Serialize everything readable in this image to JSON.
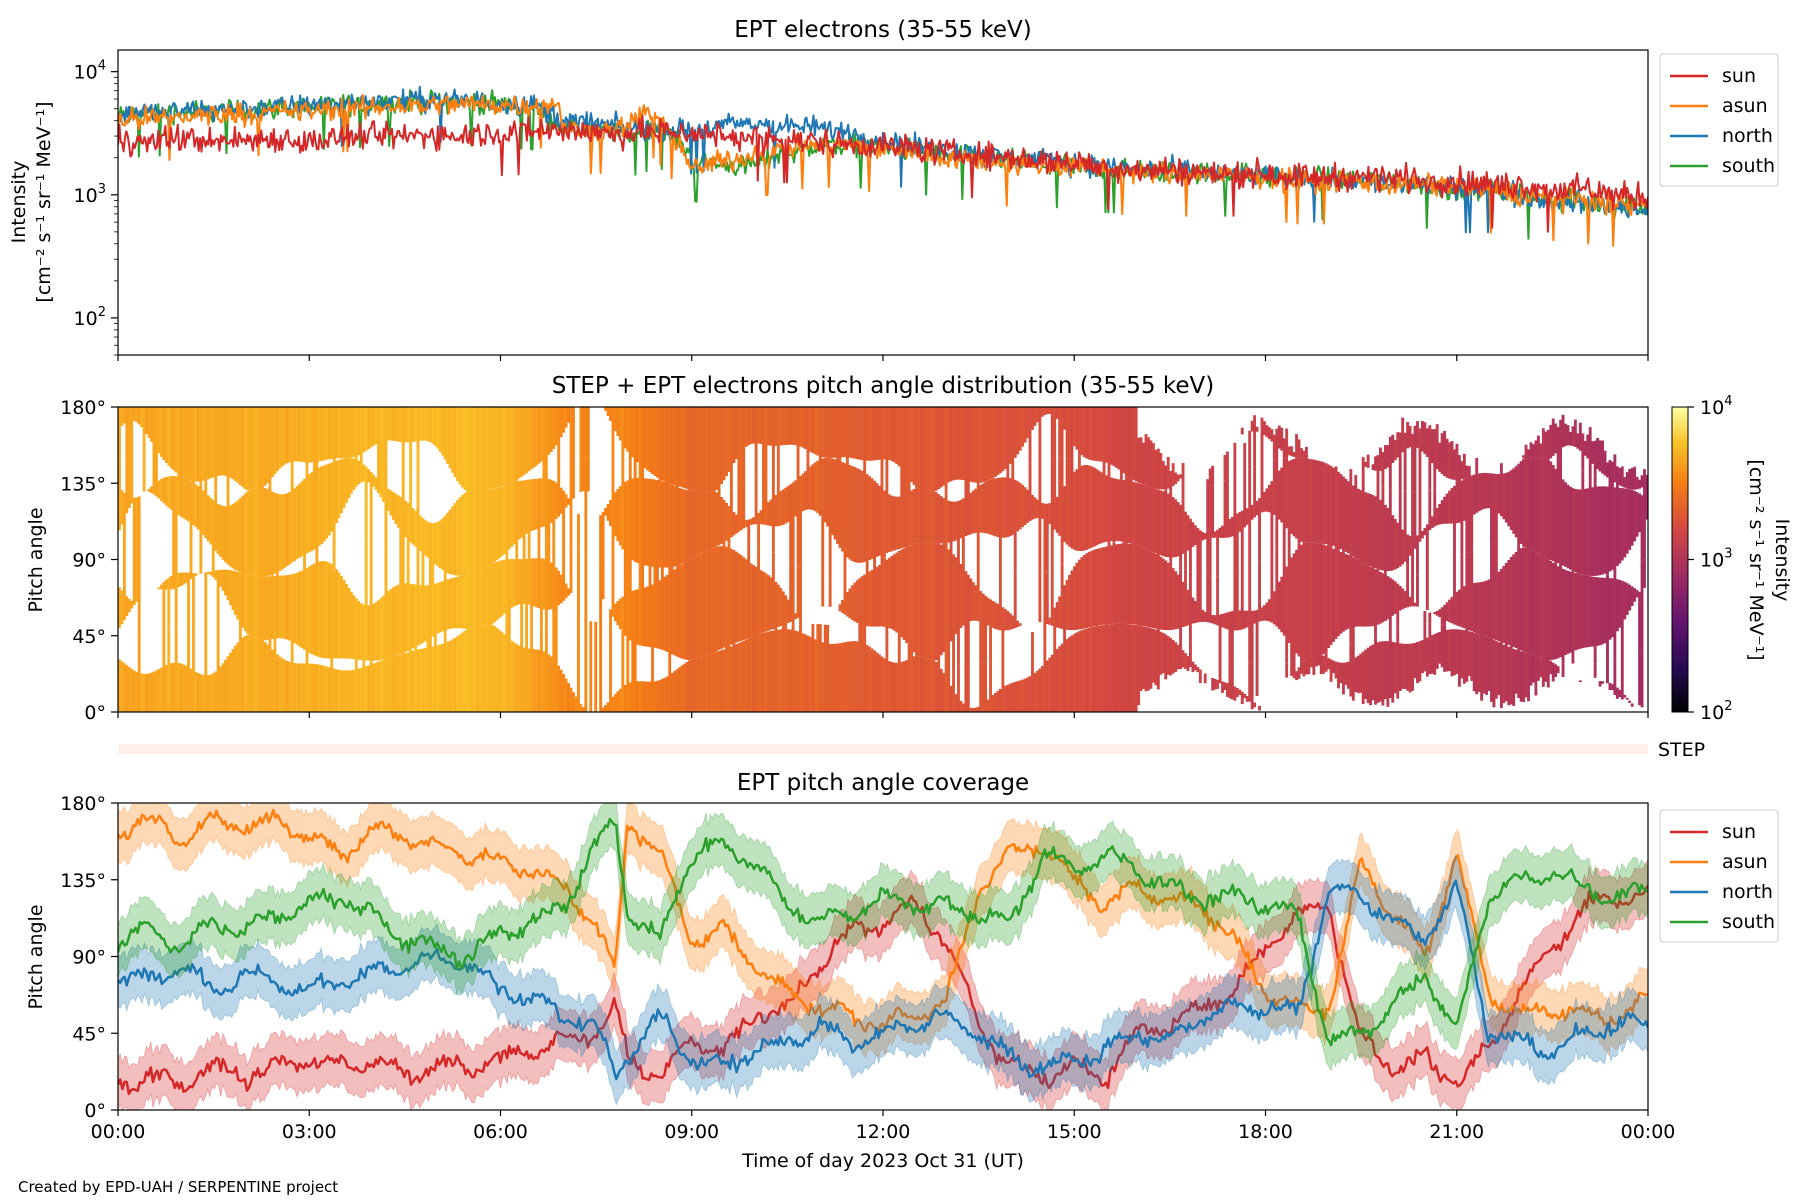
{
  "footer": "Created by EPD-UAH / SERPENTINE project",
  "colors": {
    "sun": "#d62728",
    "asun": "#ff7f0e",
    "north": "#1f77b4",
    "south": "#2ca02c",
    "step_strip": "#fdefe9"
  },
  "chart_data": [
    {
      "id": "panel1",
      "type": "line",
      "title": "EPT electrons (35-55 keV)",
      "ylabel": "Intensity",
      "ylabel_units": "[cm⁻² s⁻¹ sr⁻¹ MeV⁻¹]",
      "yscale": "log",
      "ylim": [
        50,
        15000
      ],
      "yticks": [
        {
          "value": 100,
          "base": "10",
          "exp": "2"
        },
        {
          "value": 1000,
          "base": "10",
          "exp": "3"
        },
        {
          "value": 10000,
          "base": "10",
          "exp": "4"
        }
      ],
      "xlim": [
        0,
        24
      ],
      "legend": {
        "placement": "outside-right-top",
        "entries": [
          "sun",
          "asun",
          "north",
          "south"
        ]
      },
      "series": [
        {
          "name": "sun",
          "x": [
            0,
            0.5,
            1,
            1.5,
            2,
            2.5,
            3,
            3.5,
            4,
            4.5,
            5,
            5.5,
            6,
            6.5,
            7,
            7.5,
            8,
            8.5,
            9,
            9.5,
            10,
            10.5,
            11,
            11.5,
            12,
            12.5,
            13,
            13.5,
            14,
            14.5,
            15,
            15.5,
            16,
            16.5,
            17,
            17.5,
            18,
            18.5,
            19,
            19.5,
            20,
            20.5,
            21,
            21.5,
            22,
            22.5,
            23,
            23.5,
            24
          ],
          "values": [
            2800,
            2700,
            2900,
            2700,
            2800,
            2900,
            2700,
            2900,
            3000,
            3000,
            3100,
            3100,
            3200,
            3300,
            3400,
            3200,
            3100,
            3300,
            3200,
            3000,
            2900,
            2800,
            2700,
            2600,
            2500,
            2400,
            2200,
            2100,
            2000,
            1900,
            1800,
            1700,
            1600,
            1600,
            1500,
            1500,
            1500,
            1400,
            1400,
            1400,
            1400,
            1300,
            1300,
            1200,
            1200,
            1100,
            1100,
            1000,
            950
          ]
        },
        {
          "name": "asun",
          "x": [
            0,
            0.5,
            1,
            1.5,
            2,
            2.5,
            3,
            3.5,
            4,
            4.5,
            5,
            5.5,
            6,
            6.5,
            6.9,
            7,
            7.5,
            8,
            8.3,
            8.6,
            9,
            9.5,
            10,
            10.5,
            11,
            11.5,
            12,
            12.5,
            13,
            13.5,
            14,
            14.5,
            15,
            15.5,
            16,
            16.5,
            17,
            17.5,
            18,
            18.5,
            19,
            19.5,
            20,
            20.5,
            21,
            21.5,
            22,
            22.5,
            23,
            23.5,
            24
          ],
          "values": [
            4000,
            4200,
            4300,
            4500,
            4600,
            4700,
            4800,
            5000,
            5100,
            5300,
            5400,
            5500,
            5400,
            5400,
            5300,
            3400,
            3300,
            3600,
            5000,
            3400,
            1600,
            1900,
            2100,
            2400,
            2600,
            2500,
            2300,
            2200,
            2000,
            1900,
            1800,
            1700,
            1700,
            1600,
            1500,
            1500,
            1500,
            1400,
            1400,
            1300,
            1300,
            1300,
            1200,
            1200,
            1200,
            1100,
            1000,
            950,
            900,
            850,
            800
          ]
        },
        {
          "name": "north",
          "x": [
            0,
            0.5,
            1,
            1.5,
            2,
            2.5,
            3,
            3.5,
            4,
            4.5,
            5,
            5.5,
            6,
            6.5,
            7,
            7.5,
            8,
            8.5,
            9,
            9.5,
            10,
            10.5,
            11,
            11.5,
            12,
            12.5,
            13,
            13.5,
            14,
            14.5,
            15,
            15.5,
            16,
            16.5,
            17,
            17.5,
            18,
            18.5,
            19,
            19.5,
            20,
            20.5,
            21,
            21.5,
            22,
            22.5,
            23,
            23.5,
            24
          ],
          "values": [
            4500,
            4700,
            4800,
            4900,
            5000,
            5200,
            5300,
            5500,
            5700,
            5900,
            6000,
            5800,
            5600,
            5400,
            4000,
            3800,
            3500,
            3400,
            3300,
            3700,
            3800,
            3600,
            3500,
            3200,
            2700,
            2500,
            2300,
            2100,
            2000,
            1900,
            1800,
            1700,
            1600,
            1600,
            1500,
            1500,
            1400,
            1400,
            1300,
            1300,
            1200,
            1200,
            1100,
            1100,
            1000,
            900,
            850,
            800,
            750
          ]
        },
        {
          "name": "south",
          "x": [
            0,
            0.5,
            1,
            1.5,
            2,
            2.5,
            3,
            3.5,
            4,
            4.5,
            5,
            5.5,
            6,
            6.5,
            7,
            7.5,
            8,
            8.5,
            9,
            9.5,
            10,
            10.5,
            11,
            11.5,
            12,
            12.5,
            13,
            13.5,
            14,
            14.5,
            15,
            15.5,
            16,
            16.5,
            17,
            17.5,
            18,
            18.5,
            19,
            19.5,
            20,
            20.5,
            21,
            21.5,
            22,
            22.5,
            23,
            23.5,
            24
          ],
          "values": [
            4400,
            4600,
            4700,
            4800,
            4900,
            5100,
            5200,
            5300,
            5500,
            5600,
            5800,
            5600,
            5400,
            5200,
            3400,
            3300,
            3100,
            3700,
            2000,
            1700,
            1800,
            2200,
            2500,
            2600,
            2400,
            2300,
            2100,
            2000,
            1900,
            1800,
            1700,
            1600,
            1600,
            1500,
            1500,
            1500,
            1400,
            1400,
            1400,
            1300,
            1300,
            1200,
            1100,
            1100,
            1000,
            900,
            850,
            800,
            800
          ]
        }
      ]
    },
    {
      "id": "panel2",
      "type": "heatmap",
      "title": "STEP + EPT electrons pitch angle distribution (35-55 keV)",
      "ylabel": "Pitch angle",
      "ylim": [
        0,
        180
      ],
      "yticks": [
        "0°",
        "45°",
        "90°",
        "135°",
        "180°"
      ],
      "xlim": [
        0,
        24
      ],
      "colorbar": {
        "label": "Intensity",
        "units": "[cm⁻² s⁻¹ sr⁻¹ MeV⁻¹]",
        "scale": "log",
        "range": [
          100,
          10000
        ],
        "colormap": "inferno",
        "ticks": [
          {
            "value": 100,
            "base": "10",
            "exp": "2"
          },
          {
            "value": 1000,
            "base": "10",
            "exp": "3"
          },
          {
            "value": 10000,
            "base": "10",
            "exp": "4"
          }
        ]
      },
      "intensity_profile": {
        "x": [
          0,
          1,
          2,
          3,
          4,
          5,
          6,
          7,
          8,
          9,
          10,
          11,
          12,
          13,
          14,
          15,
          16,
          17,
          18,
          19,
          20,
          21,
          22,
          23,
          24
        ],
        "values": [
          4500,
          4600,
          4700,
          4900,
          5200,
          5400,
          5300,
          3400,
          3300,
          2400,
          2300,
          2200,
          2000,
          1900,
          1800,
          1700,
          1500,
          1400,
          1350,
          1300,
          1200,
          1150,
          1050,
          950,
          850
        ]
      }
    },
    {
      "id": "step-strip",
      "type": "heatmap",
      "label": "STEP"
    },
    {
      "id": "panel3",
      "type": "line",
      "title": "EPT pitch angle coverage",
      "ylabel": "Pitch angle",
      "ylim": [
        0,
        180
      ],
      "yticks": [
        "0°",
        "45°",
        "90°",
        "135°",
        "180°"
      ],
      "xlim": [
        0,
        24
      ],
      "xticks": [
        "00:00",
        "03:00",
        "06:00",
        "09:00",
        "12:00",
        "15:00",
        "18:00",
        "21:00",
        "00:00"
      ],
      "xlabel": "Time of day 2023 Oct 31 (UT)",
      "legend": {
        "placement": "outside-right-top",
        "entries": [
          "sun",
          "asun",
          "north",
          "south"
        ]
      },
      "series": [
        {
          "name": "sun",
          "x": [
            0,
            0.5,
            1,
            1.5,
            2,
            2.5,
            3,
            3.5,
            4,
            4.5,
            5,
            5.5,
            6,
            6.5,
            7,
            7.5,
            7.8,
            8,
            8.5,
            9,
            9.5,
            10,
            10.5,
            11,
            11.5,
            12,
            12.5,
            13,
            13.5,
            14,
            14.5,
            15,
            15.5,
            16,
            16.5,
            17,
            17.5,
            18,
            18.5,
            19,
            19.5,
            20,
            20.5,
            21,
            21.5,
            22,
            22.5,
            23,
            23.5,
            24
          ],
          "values": [
            15,
            20,
            15,
            25,
            20,
            25,
            30,
            25,
            30,
            20,
            25,
            25,
            30,
            35,
            40,
            45,
            60,
            30,
            20,
            40,
            35,
            55,
            60,
            85,
            105,
            110,
            120,
            100,
            50,
            25,
            20,
            25,
            20,
            45,
            50,
            60,
            70,
            95,
            115,
            120,
            40,
            25,
            30,
            15,
            35,
            70,
            95,
            120,
            125,
            125
          ]
        },
        {
          "name": "asun",
          "x": [
            0,
            0.5,
            1,
            1.5,
            2,
            2.5,
            3,
            3.5,
            4,
            4.5,
            5,
            5.5,
            6,
            6.5,
            7,
            7.5,
            7.8,
            8,
            8.5,
            9,
            9.5,
            10,
            10.5,
            11,
            11.5,
            12,
            12.5,
            13,
            13.5,
            14,
            14.5,
            15,
            15.5,
            16,
            16.5,
            17,
            17.5,
            18,
            18.5,
            19,
            19.5,
            20,
            20.5,
            21,
            21.5,
            22,
            22.5,
            23,
            23.5,
            24
          ],
          "values": [
            165,
            170,
            160,
            170,
            165,
            170,
            160,
            150,
            165,
            160,
            155,
            150,
            145,
            140,
            130,
            110,
            80,
            170,
            150,
            100,
            105,
            85,
            70,
            60,
            55,
            50,
            55,
            65,
            130,
            150,
            155,
            135,
            120,
            130,
            125,
            120,
            100,
            70,
            60,
            60,
            145,
            115,
            90,
            150,
            70,
            55,
            60,
            55,
            55,
            65
          ]
        },
        {
          "name": "north",
          "x": [
            0,
            0.5,
            1,
            1.5,
            2,
            2.5,
            3,
            3.5,
            4,
            4.5,
            5,
            5.5,
            6,
            6.5,
            7,
            7.5,
            7.8,
            8,
            8.5,
            9,
            9.5,
            10,
            10.5,
            11,
            11.5,
            12,
            12.5,
            13,
            13.5,
            14,
            14.5,
            15,
            15.5,
            16,
            16.5,
            17,
            17.5,
            18,
            18.5,
            19,
            19.5,
            20,
            20.5,
            21,
            21.5,
            22,
            22.5,
            23,
            23.5,
            24
          ],
          "values": [
            80,
            75,
            85,
            70,
            80,
            75,
            70,
            75,
            80,
            85,
            90,
            85,
            70,
            65,
            55,
            50,
            20,
            35,
            55,
            30,
            25,
            35,
            40,
            50,
            40,
            45,
            50,
            55,
            45,
            30,
            25,
            30,
            35,
            45,
            40,
            55,
            60,
            60,
            55,
            130,
            125,
            110,
            100,
            130,
            45,
            40,
            35,
            45,
            50,
            50
          ]
        },
        {
          "name": "south",
          "x": [
            0,
            0.5,
            1,
            1.5,
            2,
            2.5,
            3,
            3.5,
            4,
            4.5,
            5,
            5.5,
            6,
            6.5,
            7,
            7.5,
            7.8,
            8,
            8.5,
            9,
            9.5,
            10,
            10.5,
            11,
            11.5,
            12,
            12.5,
            13,
            13.5,
            14,
            14.5,
            15,
            15.5,
            16,
            16.5,
            17,
            17.5,
            18,
            18.5,
            19,
            19.5,
            20,
            20.5,
            21,
            21.5,
            22,
            22.5,
            23,
            23.5,
            24
          ],
          "values": [
            100,
            105,
            95,
            110,
            105,
            115,
            120,
            125,
            115,
            100,
            95,
            90,
            105,
            110,
            120,
            155,
            170,
            115,
            100,
            150,
            155,
            145,
            120,
            110,
            115,
            125,
            120,
            120,
            115,
            110,
            150,
            140,
            150,
            140,
            130,
            125,
            125,
            120,
            115,
            40,
            45,
            60,
            80,
            45,
            125,
            135,
            140,
            130,
            125,
            130
          ]
        }
      ]
    }
  ]
}
